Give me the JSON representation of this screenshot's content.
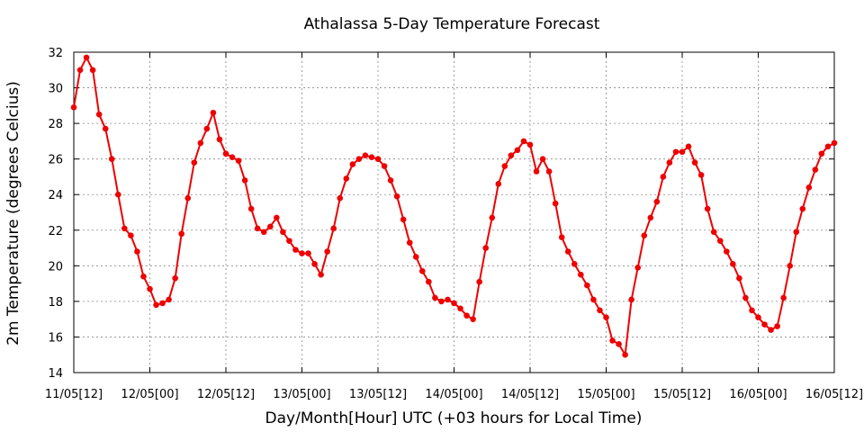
{
  "chart_data": {
    "type": "line",
    "title": "Athalassa 5-Day Temperature Forecast",
    "xlabel": "Day/Month[Hour] UTC (+03 hours for Local Time)",
    "ylabel": "2m Temperature (degrees Celcius)",
    "xlim": [
      0,
      120
    ],
    "ylim": [
      14,
      32
    ],
    "grid": true,
    "x_ticks": [
      {
        "x": 0,
        "label": "11/05[12]"
      },
      {
        "x": 12,
        "label": "12/05[00]"
      },
      {
        "x": 24,
        "label": "12/05[12]"
      },
      {
        "x": 36,
        "label": "13/05[00]"
      },
      {
        "x": 48,
        "label": "13/05[12]"
      },
      {
        "x": 60,
        "label": "14/05[00]"
      },
      {
        "x": 72,
        "label": "14/05[12]"
      },
      {
        "x": 84,
        "label": "15/05[00]"
      },
      {
        "x": 96,
        "label": "15/05[12]"
      },
      {
        "x": 108,
        "label": "16/05[00]"
      },
      {
        "x": 120,
        "label": "16/05[12]"
      }
    ],
    "y_ticks": [
      14,
      16,
      18,
      20,
      22,
      24,
      26,
      28,
      30,
      32
    ],
    "series": [
      {
        "color": "#ee0000",
        "values": [
          28.9,
          31.0,
          31.7,
          31.0,
          28.5,
          27.7,
          26.0,
          24.0,
          22.1,
          21.7,
          20.8,
          19.4,
          18.7,
          17.8,
          17.9,
          18.1,
          19.3,
          21.8,
          23.8,
          25.8,
          26.9,
          27.7,
          28.6,
          27.1,
          26.3,
          26.1,
          25.9,
          24.8,
          23.2,
          22.1,
          21.9,
          22.2,
          22.7,
          21.9,
          21.4,
          20.9,
          20.7,
          20.7,
          20.1,
          19.5,
          20.8,
          22.1,
          23.8,
          24.9,
          25.7,
          26.0,
          26.2,
          26.1,
          26.0,
          25.6,
          24.8,
          23.9,
          22.6,
          21.3,
          20.5,
          19.7,
          19.1,
          18.2,
          18.0,
          18.1,
          17.9,
          17.6,
          17.2,
          17.0,
          19.1,
          21.0,
          22.7,
          24.6,
          25.6,
          26.2,
          26.5,
          27.0,
          26.8,
          25.3,
          26.0,
          25.3,
          23.5,
          21.6,
          20.8,
          20.1,
          19.5,
          18.9,
          18.1,
          17.5,
          17.1,
          15.8,
          15.6,
          15.0,
          18.1,
          19.9,
          21.7,
          22.7,
          23.6,
          25.0,
          25.8,
          26.4,
          26.4,
          26.7,
          25.8,
          25.1,
          23.2,
          21.9,
          21.4,
          20.8,
          20.1,
          19.3,
          18.2,
          17.5,
          17.1,
          16.7,
          16.4,
          16.6,
          18.2,
          20.0,
          21.9,
          23.2,
          24.4,
          25.4,
          26.3,
          26.7,
          26.9
        ]
      }
    ]
  }
}
